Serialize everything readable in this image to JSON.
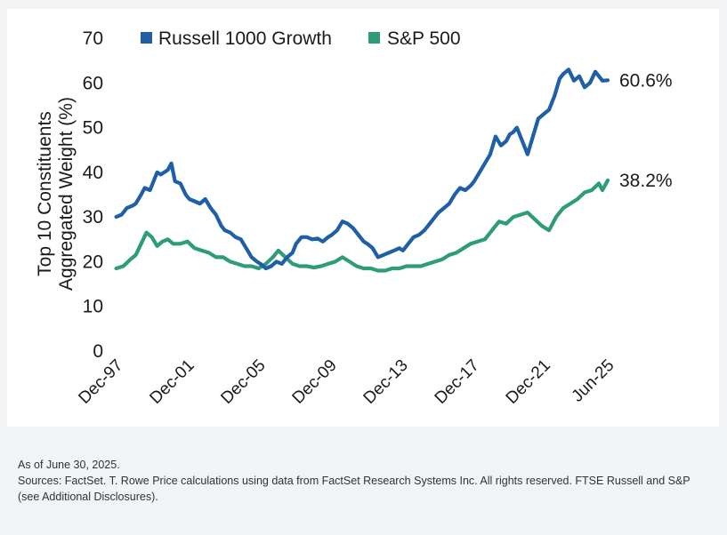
{
  "chart_data": {
    "type": "line",
    "title": "",
    "xlabel": "",
    "ylabel_lines": [
      "Top 10 Constituents",
      "Aggregated Weight (%)"
    ],
    "ylim": [
      0,
      70
    ],
    "yticks": [
      0,
      10,
      20,
      30,
      40,
      50,
      60,
      70
    ],
    "xlim": [
      1997.92,
      2025.5
    ],
    "xtick_labels": [
      "Dec-97",
      "Dec-01",
      "Dec-05",
      "Dec-09",
      "Dec-13",
      "Dec-17",
      "Dec-21",
      "Jun-25"
    ],
    "xtick_positions": [
      1997.92,
      2001.92,
      2005.92,
      2009.92,
      2013.92,
      2017.92,
      2021.92,
      2025.5
    ],
    "grid": false,
    "legend_position": "top",
    "series": [
      {
        "name": "Russell 1000 Growth",
        "color": "#1f5fa8",
        "end_label": "60.6%",
        "x": [
          1997.9,
          1998.2,
          1998.5,
          1998.8,
          1999.0,
          1999.3,
          1999.5,
          1999.8,
          2000.0,
          2000.2,
          2000.4,
          2000.6,
          2000.8,
          2001.0,
          2001.2,
          2001.5,
          2001.8,
          2002.0,
          2002.3,
          2002.6,
          2002.9,
          2003.2,
          2003.5,
          2003.8,
          2004.0,
          2004.3,
          2004.6,
          2004.9,
          2005.2,
          2005.5,
          2005.8,
          2006.0,
          2006.3,
          2006.6,
          2006.9,
          2007.2,
          2007.5,
          2007.8,
          2008.0,
          2008.3,
          2008.6,
          2008.9,
          2009.2,
          2009.5,
          2009.8,
          2010.0,
          2010.3,
          2010.6,
          2010.9,
          2011.2,
          2011.5,
          2011.8,
          2012.0,
          2012.3,
          2012.6,
          2012.9,
          2013.2,
          2013.5,
          2013.8,
          2014.0,
          2014.3,
          2014.6,
          2014.9,
          2015.2,
          2015.5,
          2015.8,
          2016.0,
          2016.3,
          2016.6,
          2016.9,
          2017.2,
          2017.5,
          2017.8,
          2018.0,
          2018.3,
          2018.6,
          2018.9,
          2019.2,
          2019.5,
          2019.8,
          2020.0,
          2020.2,
          2020.4,
          2020.6,
          2020.8,
          2021.0,
          2021.3,
          2021.6,
          2021.9,
          2022.2,
          2022.5,
          2022.8,
          2023.0,
          2023.3,
          2023.6,
          2023.9,
          2024.2,
          2024.5,
          2024.8,
          2025.0,
          2025.2,
          2025.5
        ],
        "y": [
          30,
          30.5,
          32,
          32.5,
          33,
          35,
          36.5,
          36,
          38,
          40,
          39.5,
          40,
          40.5,
          42,
          38,
          37.5,
          35,
          34,
          33.5,
          33,
          34,
          32,
          30.5,
          28,
          27,
          26.5,
          25.5,
          25,
          23,
          21,
          20,
          19.5,
          18.5,
          19,
          20,
          19.5,
          21,
          22,
          24,
          25.5,
          25.5,
          25,
          25.2,
          24.5,
          25.5,
          26,
          27,
          29,
          28.5,
          27.5,
          26,
          24.5,
          24,
          23,
          21,
          21.5,
          22,
          22.5,
          23,
          22.5,
          24,
          25.5,
          26,
          27,
          28.5,
          30,
          31,
          32,
          33,
          35,
          36.5,
          36,
          37,
          38,
          40,
          42,
          44,
          48,
          46,
          47,
          48.5,
          49,
          50,
          48,
          46,
          44,
          48,
          52,
          53,
          54,
          57,
          61,
          62,
          63,
          60.5,
          61.5,
          59,
          60,
          62.5,
          61.5,
          60.5,
          60.6
        ]
      },
      {
        "name": "S&P 500",
        "color": "#2e9c76",
        "end_label": "38.2%",
        "x": [
          1997.9,
          1998.3,
          1998.7,
          1999.0,
          1999.3,
          1999.6,
          1999.9,
          2000.2,
          2000.5,
          2000.8,
          2001.1,
          2001.5,
          2001.9,
          2002.3,
          2002.7,
          2003.1,
          2003.5,
          2003.9,
          2004.3,
          2004.7,
          2005.1,
          2005.5,
          2005.9,
          2006.3,
          2006.7,
          2007.0,
          2007.4,
          2007.8,
          2008.2,
          2008.6,
          2009.0,
          2009.4,
          2009.8,
          2010.2,
          2010.6,
          2011.0,
          2011.4,
          2011.8,
          2012.2,
          2012.6,
          2013.0,
          2013.4,
          2013.8,
          2014.2,
          2014.6,
          2015.0,
          2015.4,
          2015.8,
          2016.2,
          2016.6,
          2017.0,
          2017.4,
          2017.8,
          2018.2,
          2018.6,
          2019.0,
          2019.4,
          2019.8,
          2020.2,
          2020.6,
          2021.0,
          2021.4,
          2021.8,
          2022.2,
          2022.6,
          2023.0,
          2023.4,
          2023.8,
          2024.2,
          2024.6,
          2025.0,
          2025.2,
          2025.5
        ],
        "y": [
          18.5,
          19,
          20.5,
          21.5,
          24,
          26.5,
          25.5,
          23.5,
          24.5,
          25,
          24,
          24,
          24.5,
          23,
          22.5,
          22,
          21,
          21,
          20,
          19.5,
          19,
          19,
          18.5,
          19.5,
          21,
          22.5,
          21,
          19.5,
          19,
          19,
          18.7,
          19,
          19.5,
          20,
          21,
          20,
          19,
          18.5,
          18.5,
          18,
          18,
          18.5,
          18.5,
          19,
          19,
          19,
          19.5,
          20,
          20.5,
          21.5,
          22,
          23,
          24,
          24.5,
          25,
          27,
          29,
          28.5,
          30,
          30.5,
          31,
          29.5,
          28,
          27,
          30,
          32,
          33,
          34,
          35.5,
          36,
          37.5,
          36,
          38.2
        ]
      }
    ]
  },
  "notes": {
    "as_of": "As of June 30, 2025.",
    "sources": "Sources: FactSet. T. Rowe Price calculations using data from FactSet Research Systems Inc. All rights reserved. FTSE Russell and S&P (see Additional Disclosures)."
  }
}
